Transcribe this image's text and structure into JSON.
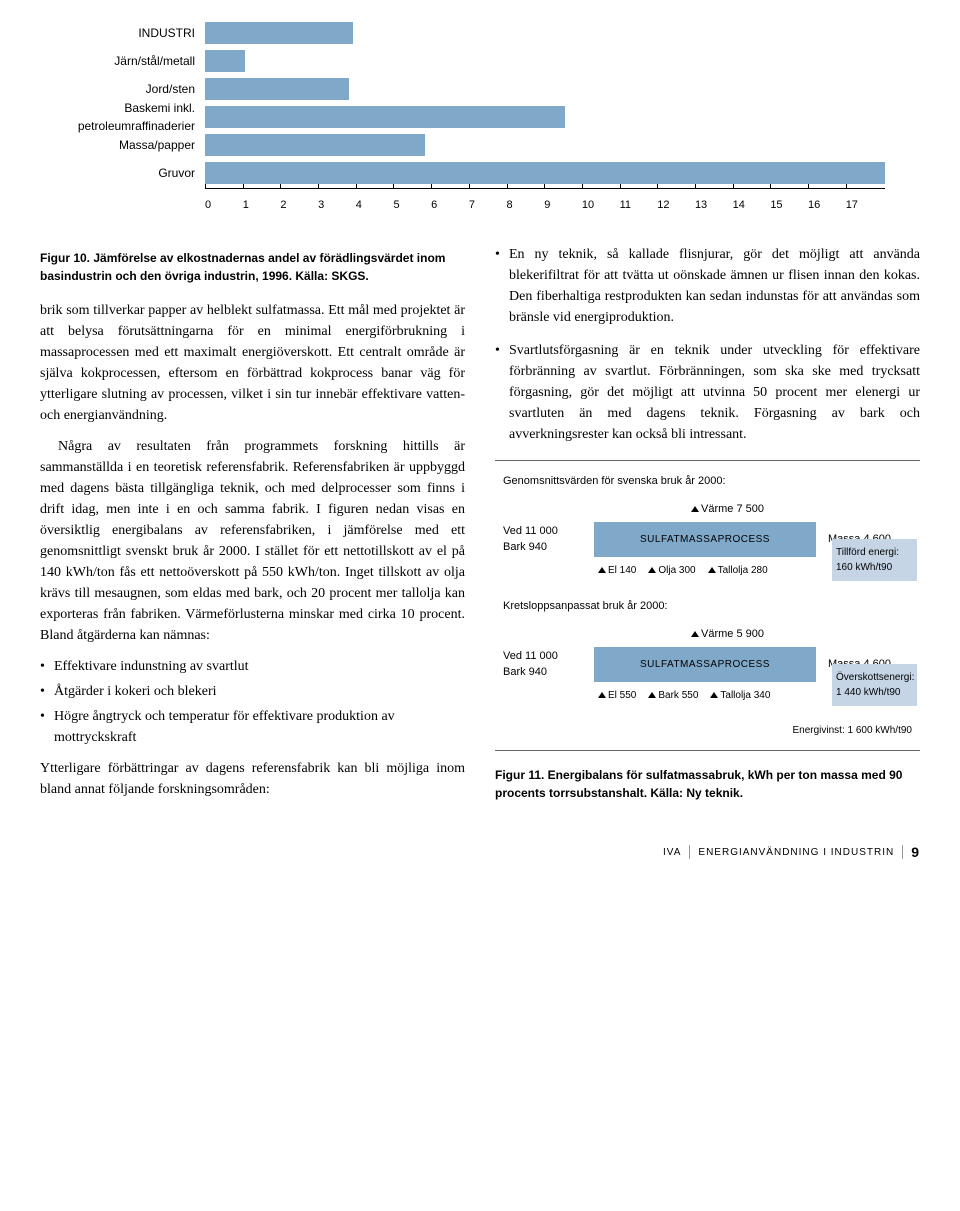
{
  "chart1": {
    "categories": [
      "INDUSTRI",
      "Järn/stål/metall",
      "Jord/sten",
      "Baskemi inkl. petroleumraffinaderier",
      "Massa/papper",
      "Gruvor"
    ],
    "values": [
      3.7,
      1.0,
      3.6,
      9.0,
      5.5,
      17.0
    ],
    "xmax": 17,
    "bar_color": "#7fa8c9",
    "ticks": [
      "0",
      "1",
      "2",
      "3",
      "4",
      "5",
      "6",
      "7",
      "8",
      "9",
      "10",
      "11",
      "12",
      "13",
      "14",
      "15",
      "16",
      "17"
    ]
  },
  "fig10_caption": "Figur 10. Jämförelse av elkostnadernas andel av förädlingsvärdet inom basindustrin och den övriga industrin, 1996. Källa: SKGS.",
  "leftcol": {
    "p1": "brik som tillverkar papper av helblekt sulfatmassa. Ett mål med projektet är att belysa förutsättningarna för en minimal energiförbrukning i massaprocessen med ett maximalt energiöverskott. Ett centralt område är själva kokprocessen, eftersom en förbättrad kokprocess banar väg för ytterligare slutning av processen, vilket i sin tur innebär effektivare vatten- och energianvändning.",
    "p2": "Några av resultaten från programmets forskning hittills är sammanställda i en teoretisk referensfabrik. Referensfabriken är uppbyggd med dagens bästa tillgängliga teknik, och med delprocesser som finns i drift idag, men inte i en och samma fabrik. I figuren nedan visas en översiktlig energibalans av referensfabriken, i jämförelse med ett genomsnittligt svenskt bruk år 2000. I stället för ett nettotillskott av el på 140 kWh/ton fås ett nettoöverskott på 550 kWh/ton. Inget tillskott av olja krävs till mesaugnen, som eldas med bark, och 20 procent mer tallolja kan exporteras från fabriken. Värmeförlusterna minskar med cirka 10 procent. Bland åtgärderna kan nämnas:",
    "list1": [
      "Effektivare indunstning av svartlut",
      "Åtgärder i kokeri och blekeri",
      "Högre ångtryck och temperatur för effektivare produktion av mottryckskraft"
    ],
    "p3": "Ytterligare förbättringar av dagens referensfabrik kan bli möjliga inom bland annat följande forskningsområden:"
  },
  "rightcol": {
    "list2": [
      "En ny teknik, så kallade flisnjurar, gör det möjligt att använda blekerifiltrat för att tvätta ut oönskade ämnen ur flisen innan den kokas. Den fiberhaltiga restprodukten kan sedan indunstas för att användas som bränsle vid energiproduktion.",
      "Svartlutsförgasning är en teknik under utveckling för effektivare förbränning av svartlut. Förbränningen, som ska ske med trycksatt förgasning, gör det möjligt att utvinna 50 procent mer elenergi ur svartluten än med dagens teknik. Förgasning av bark och avverkningsrester kan också bli intressant."
    ]
  },
  "diagram": {
    "title": "Genomsnittsvärden för svenska bruk år 2000:",
    "sec1": {
      "heat": "Värme\n7 500",
      "in1": "Ved 11 000",
      "in2": "Bark 940",
      "proc": "SULFATMASSAPROCESS",
      "out": "Massa 4 600",
      "bot": [
        "El 140",
        "Olja 300",
        "Tallolja 280"
      ],
      "side": "Tillförd energi: 160 kWh/t90"
    },
    "subtitle2": "Kretsloppsanpassat bruk år 2000:",
    "sec2": {
      "heat": "Värme\n5 900",
      "in1": "Ved 11 000",
      "in2": "Bark 940",
      "proc": "SULFATMASSAPROCESS",
      "out": "Massa 4 600",
      "bot": [
        "El 550",
        "Bark 550",
        "Tallolja 340"
      ],
      "side": "Överskottsenergi: 1 440 kWh/t90"
    },
    "result": "Energivinst: 1 600 kWh/t90"
  },
  "fig11_caption": "Figur 11. Energibalans för sulfatmassabruk, kWh per ton massa med 90 procents torrsubstanshalt. Källa: Ny teknik.",
  "footer": {
    "pub": "IVA",
    "title": "ENERGIANVÄNDNING I INDUSTRIN",
    "page": "9"
  }
}
